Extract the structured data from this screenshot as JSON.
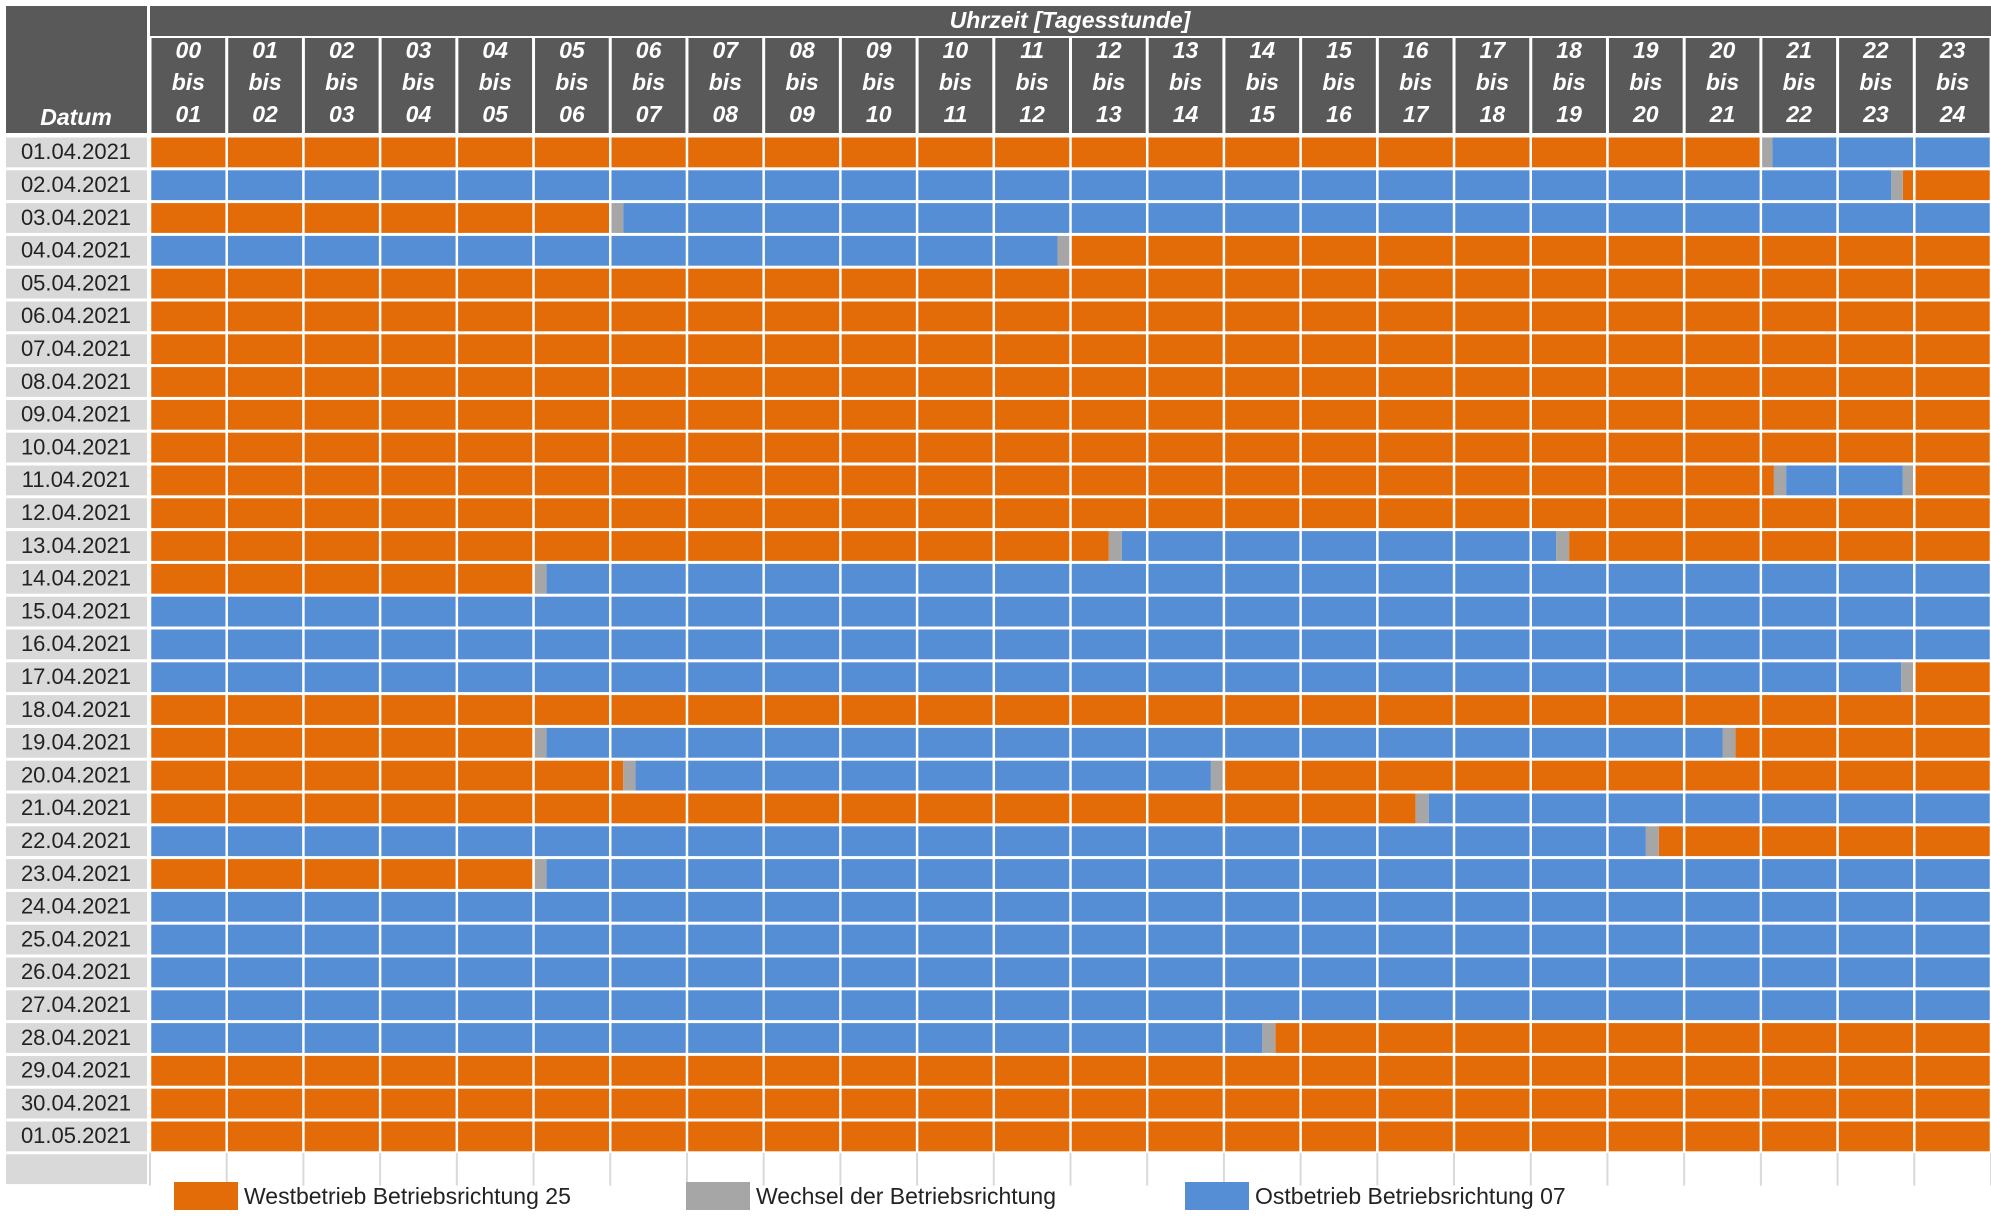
{
  "chart_data": {
    "type": "gantt",
    "title": "Uhrzeit [Tagesstunde]",
    "row_header": "Datum",
    "hour_labels": [
      [
        "00",
        "bis",
        "01"
      ],
      [
        "01",
        "bis",
        "02"
      ],
      [
        "02",
        "bis",
        "03"
      ],
      [
        "03",
        "bis",
        "04"
      ],
      [
        "04",
        "bis",
        "05"
      ],
      [
        "05",
        "bis",
        "06"
      ],
      [
        "06",
        "bis",
        "07"
      ],
      [
        "07",
        "bis",
        "08"
      ],
      [
        "08",
        "bis",
        "09"
      ],
      [
        "09",
        "bis",
        "10"
      ],
      [
        "10",
        "bis",
        "11"
      ],
      [
        "11",
        "bis",
        "12"
      ],
      [
        "12",
        "bis",
        "13"
      ],
      [
        "13",
        "bis",
        "14"
      ],
      [
        "14",
        "bis",
        "15"
      ],
      [
        "15",
        "bis",
        "16"
      ],
      [
        "16",
        "bis",
        "17"
      ],
      [
        "17",
        "bis",
        "18"
      ],
      [
        "18",
        "bis",
        "19"
      ],
      [
        "19",
        "bis",
        "20"
      ],
      [
        "20",
        "bis",
        "21"
      ],
      [
        "21",
        "bis",
        "22"
      ],
      [
        "22",
        "bis",
        "23"
      ],
      [
        "23",
        "bis",
        "24"
      ]
    ],
    "xlim": [
      0,
      24
    ],
    "xticks": [
      0,
      1,
      2,
      3,
      4,
      5,
      6,
      7,
      8,
      9,
      10,
      11,
      12,
      13,
      14,
      15,
      16,
      17,
      18,
      19,
      20,
      21,
      22,
      23,
      24
    ],
    "categories": [
      "01.04.2021",
      "02.04.2021",
      "03.04.2021",
      "04.04.2021",
      "05.04.2021",
      "06.04.2021",
      "07.04.2021",
      "08.04.2021",
      "09.04.2021",
      "10.04.2021",
      "11.04.2021",
      "12.04.2021",
      "13.04.2021",
      "14.04.2021",
      "15.04.2021",
      "16.04.2021",
      "17.04.2021",
      "18.04.2021",
      "19.04.2021",
      "20.04.2021",
      "21.04.2021",
      "22.04.2021",
      "23.04.2021",
      "24.04.2021",
      "25.04.2021",
      "26.04.2021",
      "27.04.2021",
      "28.04.2021",
      "29.04.2021",
      "30.04.2021",
      "01.05.2021"
    ],
    "series": [
      {
        "name": "Westbetrieb Betriebsrichtung 25",
        "color": "#e36c09",
        "values": [
          [
            [
              0,
              21
            ]
          ],
          [
            [
              22.85,
              24
            ]
          ],
          [
            [
              0,
              6
            ]
          ],
          [
            [
              12,
              24
            ]
          ],
          [
            [
              0,
              24
            ]
          ],
          [
            [
              0,
              24
            ]
          ],
          [
            [
              0,
              24
            ]
          ],
          [
            [
              0,
              24
            ]
          ],
          [
            [
              0,
              24
            ]
          ],
          [
            [
              0,
              24
            ]
          ],
          [
            [
              0,
              21.17
            ],
            [
              23,
              24
            ]
          ],
          [
            [
              0,
              24
            ]
          ],
          [
            [
              0,
              12.5
            ],
            [
              18.5,
              24
            ]
          ],
          [
            [
              0,
              5
            ]
          ],
          [],
          [],
          [
            [
              23,
              24
            ]
          ],
          [
            [
              0,
              24
            ]
          ],
          [
            [
              0,
              5
            ],
            [
              20.67,
              24
            ]
          ],
          [
            [
              0,
              6.17
            ],
            [
              14,
              24
            ]
          ],
          [
            [
              0,
              16.5
            ]
          ],
          [
            [
              19.67,
              24
            ]
          ],
          [
            [
              0,
              5
            ]
          ],
          [],
          [],
          [],
          [],
          [
            [
              14.67,
              24
            ]
          ],
          [
            [
              0,
              24
            ]
          ],
          [
            [
              0,
              24
            ]
          ],
          [
            [
              0,
              24
            ]
          ]
        ]
      },
      {
        "name": "Wechsel der Betriebsrichtung",
        "color": "#a6a6a6",
        "values": [
          [
            [
              21,
              21.15
            ]
          ],
          [
            [
              22.7,
              22.85
            ]
          ],
          [
            [
              6,
              6.17
            ]
          ],
          [
            [
              11.83,
              12
            ]
          ],
          [],
          [],
          [],
          [],
          [],
          [],
          [
            [
              21.17,
              21.33
            ],
            [
              22.85,
              23
            ]
          ],
          [],
          [
            [
              12.5,
              12.67
            ],
            [
              18.33,
              18.5
            ]
          ],
          [
            [
              5,
              5.17
            ]
          ],
          [],
          [],
          [
            [
              22.83,
              23
            ]
          ],
          [],
          [
            [
              5,
              5.17
            ],
            [
              20.5,
              20.67
            ]
          ],
          [
            [
              6.17,
              6.33
            ],
            [
              13.83,
              14
            ]
          ],
          [
            [
              16.5,
              16.67
            ]
          ],
          [
            [
              19.5,
              19.67
            ]
          ],
          [
            [
              5,
              5.17
            ]
          ],
          [],
          [],
          [],
          [],
          [
            [
              14.5,
              14.67
            ]
          ],
          [],
          [],
          []
        ]
      },
      {
        "name": "Ostbetrieb Betriebsrichtung 07",
        "color": "#558ed5",
        "values": [
          [
            [
              21.15,
              24
            ]
          ],
          [
            [
              0,
              22.7
            ]
          ],
          [
            [
              6.17,
              24
            ]
          ],
          [
            [
              0,
              11.83
            ]
          ],
          [],
          [],
          [],
          [],
          [],
          [],
          [
            [
              21.33,
              22.85
            ]
          ],
          [],
          [
            [
              12.67,
              18.33
            ]
          ],
          [
            [
              5.17,
              24
            ]
          ],
          [
            [
              0,
              24
            ]
          ],
          [
            [
              0,
              24
            ]
          ],
          [
            [
              0,
              22.83
            ]
          ],
          [],
          [
            [
              5.17,
              20.5
            ]
          ],
          [
            [
              6.33,
              13.83
            ]
          ],
          [
            [
              16.67,
              24
            ]
          ],
          [
            [
              0,
              19.5
            ]
          ],
          [
            [
              5.17,
              24
            ]
          ],
          [
            [
              0,
              24
            ]
          ],
          [
            [
              0,
              24
            ]
          ],
          [
            [
              0,
              24
            ]
          ],
          [
            [
              0,
              24
            ]
          ],
          [
            [
              0,
              14.5
            ]
          ],
          [],
          [],
          []
        ]
      }
    ]
  }
}
